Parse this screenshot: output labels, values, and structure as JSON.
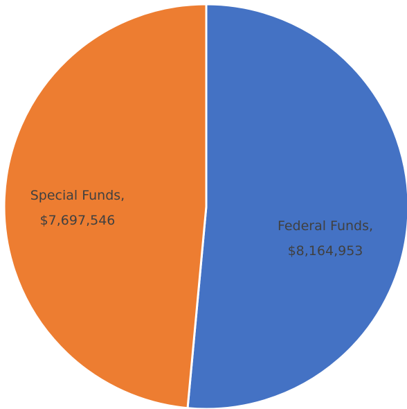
{
  "chart_data": {
    "type": "pie",
    "title": "",
    "slices": [
      {
        "label": "Federal Funds",
        "value": 8164953,
        "label_line1": "Federal Funds,",
        "label_line2": "$8,164,953",
        "color": "#4472C4"
      },
      {
        "label": "Special Funds",
        "value": 7697546,
        "label_line1": "Special Funds,",
        "label_line2": "$7,697,546",
        "color": "#ED7D31"
      }
    ],
    "start_angle_deg": 0,
    "direction": "clockwise",
    "slice_border_color": "#ffffff",
    "legend": "none"
  }
}
